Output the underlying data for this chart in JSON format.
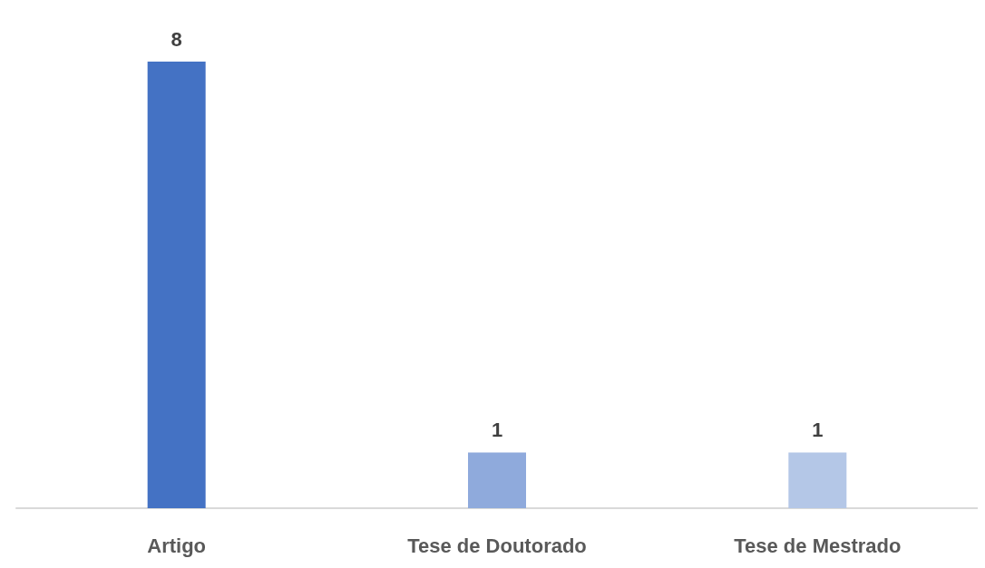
{
  "chart_data": {
    "type": "bar",
    "categories": [
      "Artigo",
      "Tese de Doutorado",
      "Tese de Mestrado"
    ],
    "values": [
      8,
      1,
      1
    ],
    "colors": [
      "#4472c4",
      "#8faadc",
      "#b4c7e7"
    ],
    "data_labels": true
  }
}
